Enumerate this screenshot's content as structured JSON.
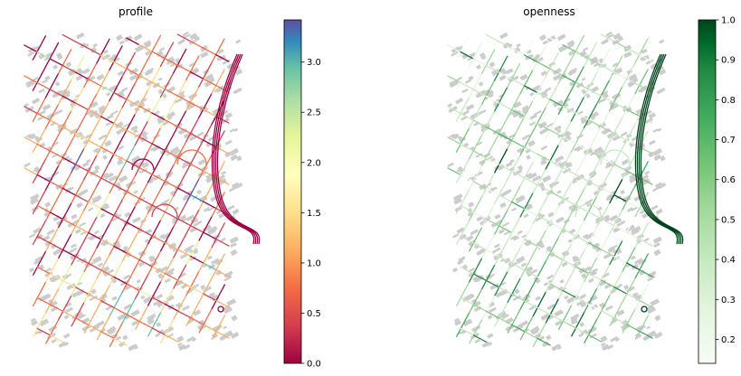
{
  "chart_data": [
    {
      "type": "map",
      "title": "profile",
      "colormap": "Spectral",
      "colorbar": {
        "vmin": 0.0,
        "vmax": 3.42,
        "ticks": [
          0.0,
          0.5,
          1.0,
          1.5,
          2.0,
          2.5,
          3.0
        ],
        "tick_labels": [
          "0.0",
          "0.5",
          "1.0",
          "1.5",
          "2.0",
          "2.5",
          "3.0"
        ]
      },
      "buildings_color": "#cccccc",
      "street_palette": [
        "#9e0142",
        "#d53e4f",
        "#f46d43",
        "#fdae61",
        "#fee08b",
        "#e6f598",
        "#abdda4",
        "#66c2a5",
        "#3288bd",
        "#5e4fa2"
      ]
    },
    {
      "type": "map",
      "title": "openness",
      "colormap": "Greens",
      "colorbar": {
        "vmin": 0.14,
        "vmax": 1.0,
        "ticks": [
          0.2,
          0.3,
          0.4,
          0.5,
          0.6,
          0.7,
          0.8,
          0.9,
          1.0
        ],
        "tick_labels": [
          "0.2",
          "0.3",
          "0.4",
          "0.5",
          "0.6",
          "0.7",
          "0.8",
          "0.9",
          "1.0"
        ]
      },
      "buildings_color": "#cccccc",
      "street_palette": [
        "#f7fcf5",
        "#e5f5e0",
        "#c7e9c0",
        "#a1d99b",
        "#74c476",
        "#41ab5d",
        "#238b45",
        "#006d2c",
        "#00441b"
      ]
    }
  ]
}
